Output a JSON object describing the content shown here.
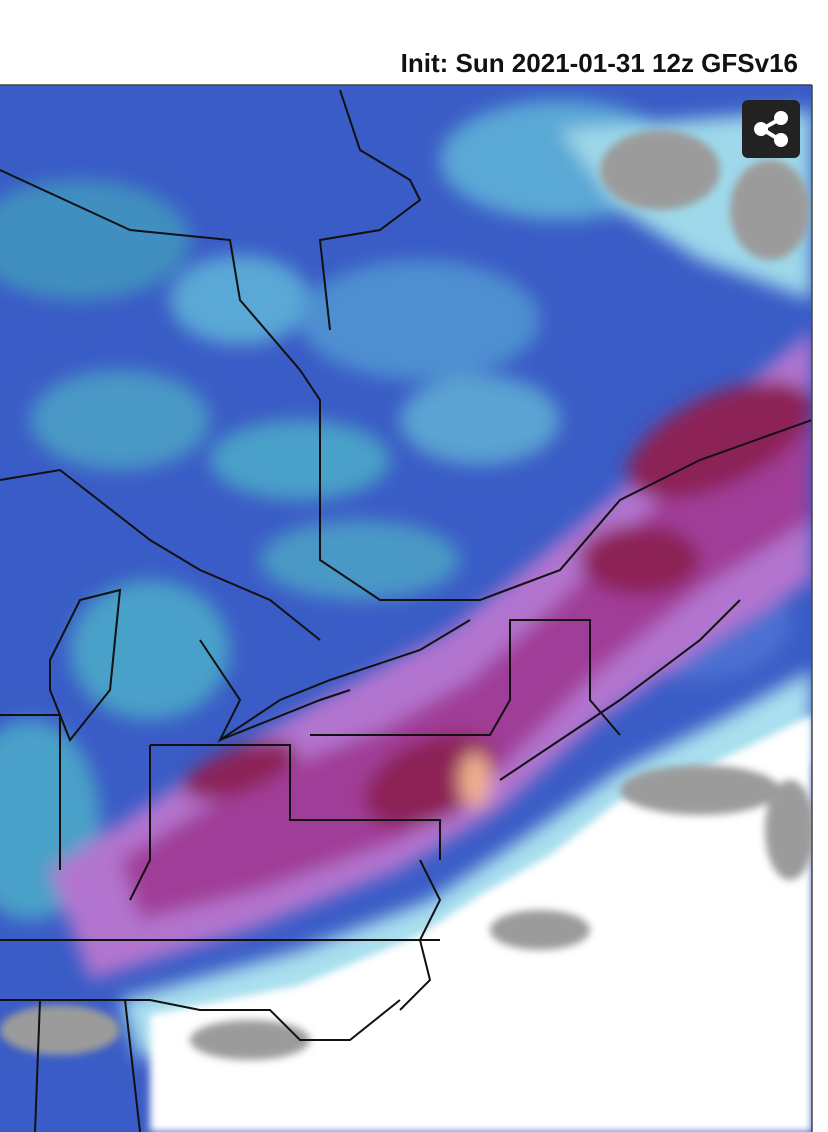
{
  "header": {
    "title": "Init: Sun 2021-01-31 12z GFSv16"
  }
}
